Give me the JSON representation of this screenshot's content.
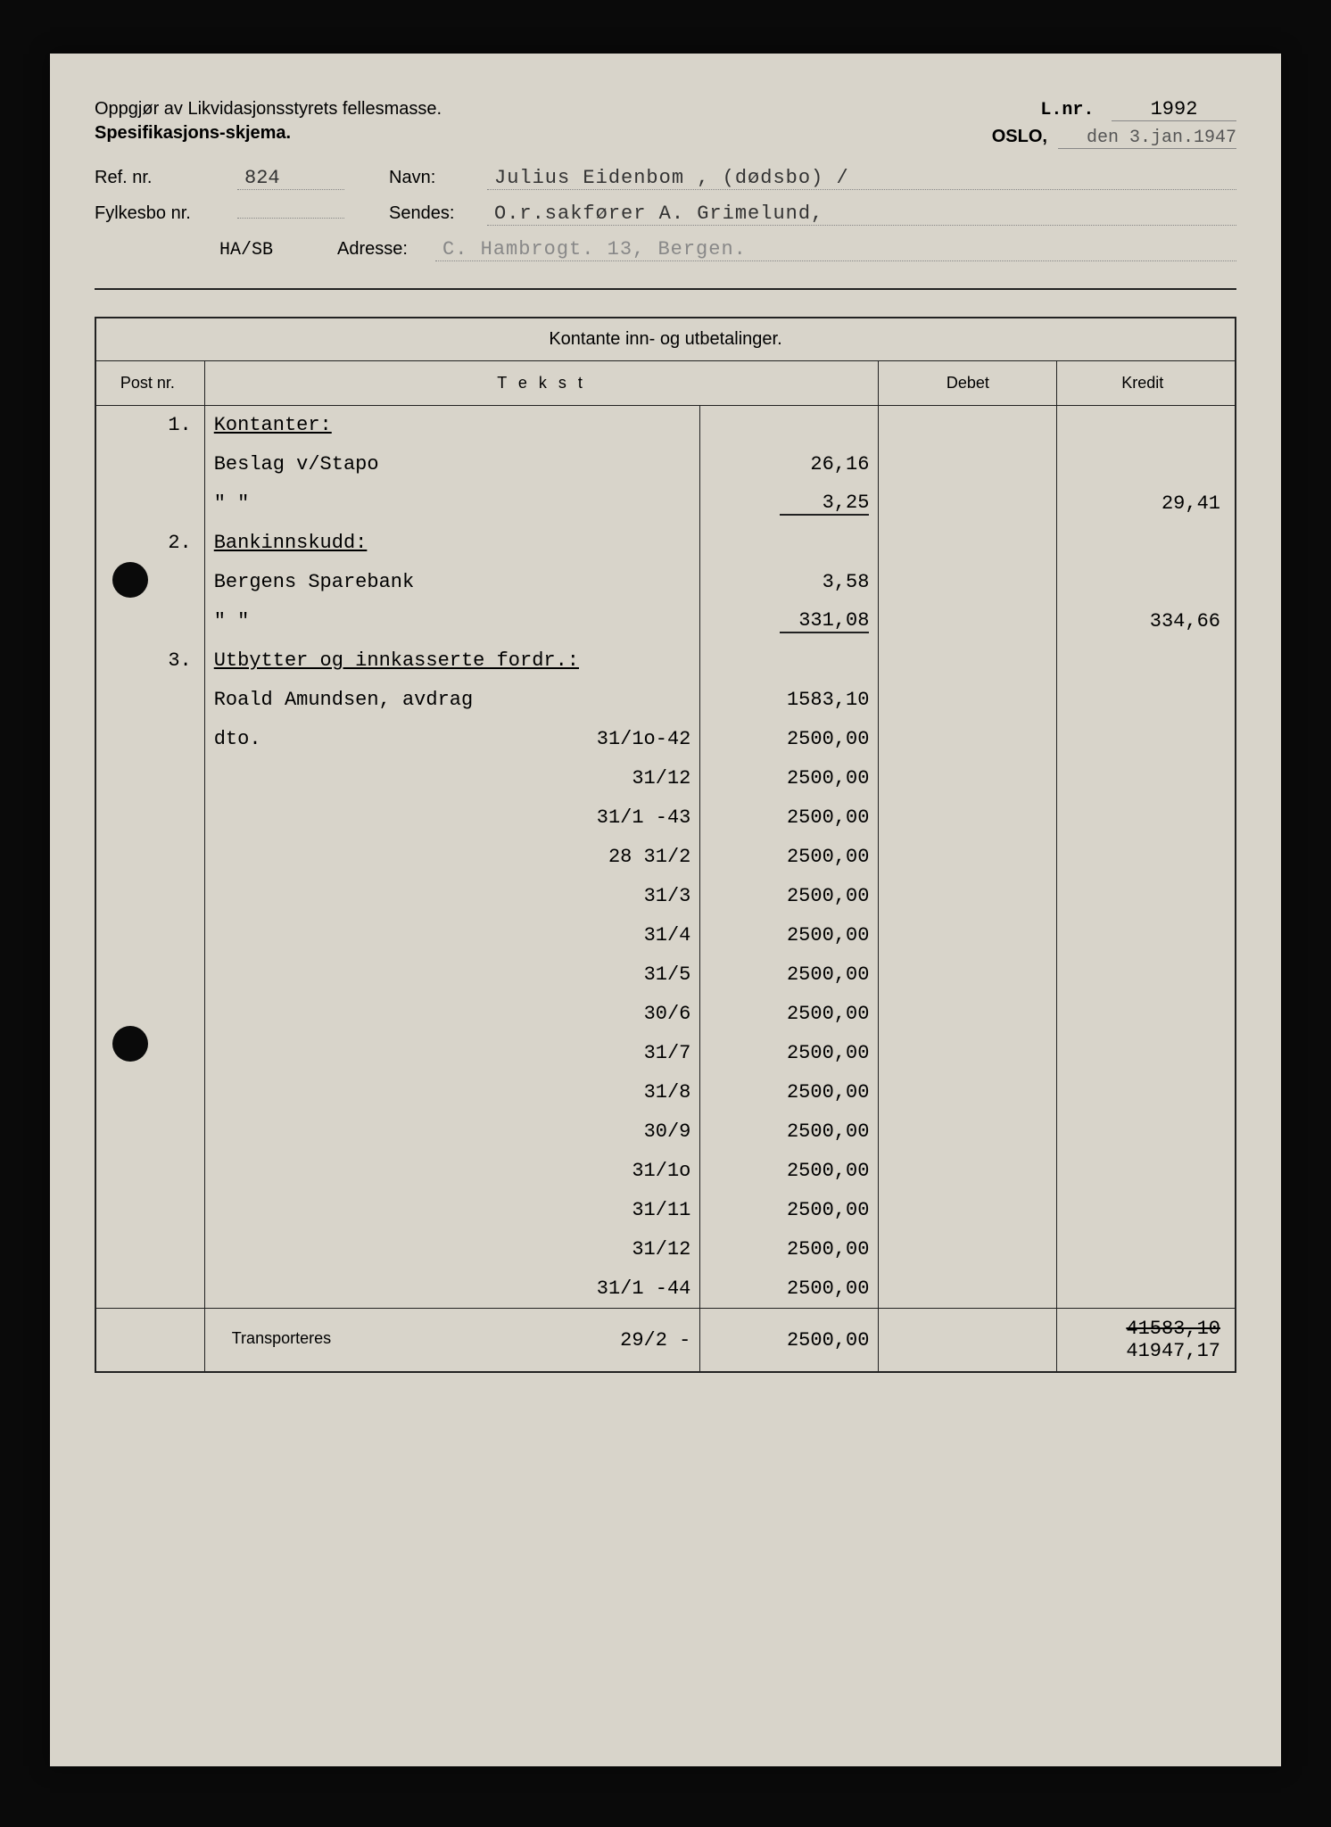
{
  "header": {
    "title1": "Oppgjør av Likvidasjonsstyrets fellesmasse.",
    "title2": "Spesifikasjons-skjema.",
    "lnr_label": "L.nr.",
    "lnr_value": "1992",
    "city": "OSLO,",
    "date": "den 3.jan.1947",
    "ref_label": "Ref. nr.",
    "ref_value": "824",
    "navn_label": "Navn:",
    "navn_value": "Julius Eidenbom , (dødsbo) /",
    "fylkesbo_label": "Fylkesbo nr.",
    "fylkesbo_value": "",
    "sendes_label": "Sendes:",
    "sendes_value": "O.r.sakfører A. Grimelund,",
    "initials": "HA/SB",
    "adresse_label": "Adresse:",
    "adresse_value": "C. Hambrogt. 13, Bergen."
  },
  "table": {
    "title": "Kontante inn- og utbetalinger.",
    "col_post": "Post nr.",
    "col_tekst": "T e k s t",
    "col_debet": "Debet",
    "col_kredit": "Kredit",
    "transport_label": "Transporteres",
    "rows": [
      {
        "post": "1.",
        "text": "Kontanter:",
        "underline": true,
        "sub": "",
        "debet": "",
        "kredit": ""
      },
      {
        "post": "",
        "text": "Beslag v/Stapo",
        "sub": "26,16",
        "debet": "",
        "kredit": ""
      },
      {
        "post": "",
        "text": "\"        \"",
        "sub": "3,25",
        "sub_underline": true,
        "debet": "",
        "kredit": "29,41"
      },
      {
        "post": "2.",
        "text": "Bankinnskudd:",
        "underline": true,
        "sub": "",
        "debet": "",
        "kredit": ""
      },
      {
        "post": "",
        "text": "Bergens Sparebank",
        "sub": "3,58",
        "debet": "",
        "kredit": ""
      },
      {
        "post": "",
        "text": "\"        \"",
        "sub": "331,08",
        "sub_underline": true,
        "debet": "",
        "kredit": "334,66"
      },
      {
        "post": "3.",
        "text": "Utbytter og innkasserte fordr.:",
        "underline": true,
        "sub": "",
        "debet": "",
        "kredit": ""
      },
      {
        "post": "",
        "text": "Roald Amundsen, avdrag",
        "sub": "1583,10",
        "debet": "",
        "kredit": ""
      },
      {
        "post": "",
        "text": "dto.",
        "date": "31/1o-42",
        "sub": "2500,00",
        "debet": "",
        "kredit": ""
      },
      {
        "post": "",
        "text": "",
        "date": "31/12",
        "sub": "2500,00",
        "debet": "",
        "kredit": ""
      },
      {
        "post": "",
        "text": "",
        "date": "31/1 -43",
        "sub": "2500,00",
        "debet": "",
        "kredit": ""
      },
      {
        "post": "",
        "text": "",
        "date": "28 31/2",
        "sub": "2500,00",
        "debet": "",
        "kredit": ""
      },
      {
        "post": "",
        "text": "",
        "date": "31/3",
        "sub": "2500,00",
        "debet": "",
        "kredit": ""
      },
      {
        "post": "",
        "text": "",
        "date": "31/4",
        "sub": "2500,00",
        "debet": "",
        "kredit": ""
      },
      {
        "post": "",
        "text": "",
        "date": "31/5",
        "sub": "2500,00",
        "debet": "",
        "kredit": ""
      },
      {
        "post": "",
        "text": "",
        "date": "30/6",
        "sub": "2500,00",
        "debet": "",
        "kredit": ""
      },
      {
        "post": "",
        "text": "",
        "date": "31/7",
        "sub": "2500,00",
        "debet": "",
        "kredit": ""
      },
      {
        "post": "",
        "text": "",
        "date": "31/8",
        "sub": "2500,00",
        "debet": "",
        "kredit": ""
      },
      {
        "post": "",
        "text": "",
        "date": "30/9",
        "sub": "2500,00",
        "debet": "",
        "kredit": ""
      },
      {
        "post": "",
        "text": "",
        "date": "31/1o",
        "sub": "2500,00",
        "debet": "",
        "kredit": ""
      },
      {
        "post": "",
        "text": "",
        "date": "31/11",
        "sub": "2500,00",
        "debet": "",
        "kredit": ""
      },
      {
        "post": "",
        "text": "",
        "date": "31/12",
        "sub": "2500,00",
        "debet": "",
        "kredit": ""
      },
      {
        "post": "",
        "text": "",
        "date": "31/1 -44",
        "sub": "2500,00",
        "debet": "",
        "kredit": ""
      }
    ],
    "footer": {
      "date": "29/2 -",
      "sub": "2500,00",
      "kredit_strike": "41583,10",
      "kredit_final": "41947,17"
    }
  },
  "style": {
    "page_bg": "#d8d4ca",
    "body_bg": "#0a0a0a",
    "border_color": "#222",
    "typed_font": "Courier New",
    "printed_font": "Arial"
  }
}
